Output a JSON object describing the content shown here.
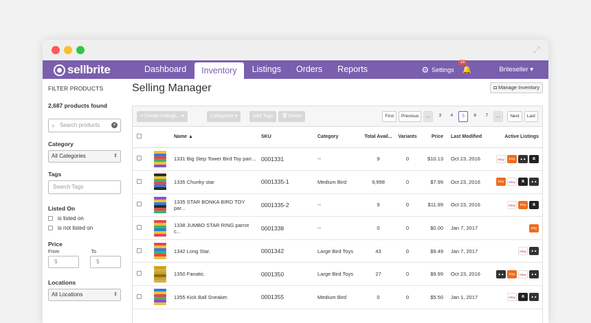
{
  "nav": {
    "logo": "sellbrite",
    "links": [
      "Dashboard",
      "Inventory",
      "Listings",
      "Orders",
      "Reports"
    ],
    "active": "Inventory",
    "settings": "Settings",
    "notifications": "15",
    "user": "Briteseller"
  },
  "sidebar": {
    "title": "FILTER PRODUCTS",
    "count": "2,687 products found",
    "search_placeholder": "Search products",
    "category_label": "Category",
    "category_value": "All Categories",
    "tags_label": "Tags",
    "tags_placeholder": "Search Tags",
    "listed_label": "Listed On",
    "listed_options": [
      "is listed on",
      "is not listed on"
    ],
    "price_label": "Price",
    "price_from": "From",
    "price_to": "To",
    "currency": "$",
    "locations_label": "Locations",
    "locations_value": "All Locations"
  },
  "main": {
    "title": "Selling Manager",
    "manage_button": "Manage Inventory",
    "toolbar": {
      "create": "Create Listings...",
      "categorize": "Categorize",
      "add_tags": "Add Tags",
      "delete": "Delete"
    },
    "pager": [
      "First",
      "Previous",
      "...",
      "3",
      "4",
      "5",
      "6",
      "7",
      "...",
      "Next",
      "Last"
    ],
    "pager_active": "5",
    "columns": [
      "Name ▲",
      "SKU",
      "Category",
      "Total Avail...",
      "Variants",
      "Price",
      "Last Modified",
      "Active Listings"
    ],
    "rows": [
      {
        "name": "1331 Big Step Tower Bird Toy parr...",
        "sku": "0001331",
        "category": "--",
        "qty": "9",
        "variants": "0",
        "price": "$10.13",
        "modified": "Oct 23, 2016",
        "listings": [
          "ebay",
          "etsy",
          "other",
          "amazon"
        ]
      },
      {
        "name": "1335 Chunky star",
        "sku": "0001335-1",
        "category": "Medium Bird",
        "qty": "9,998",
        "variants": "0",
        "price": "$7.99",
        "modified": "Oct 23, 2016",
        "listings": [
          "etsy",
          "ebay",
          "amazon",
          "other"
        ]
      },
      {
        "name": "1335 STAR BONKA BIRD TOY par...",
        "sku": "0001335-2",
        "category": "--",
        "qty": "9",
        "variants": "0",
        "price": "$11.99",
        "modified": "Oct 23, 2016",
        "listings": [
          "ebay",
          "etsy",
          "amazon"
        ]
      },
      {
        "name": "1338 JUMBO STAR RING parrot c...",
        "sku": "0001338",
        "category": "--",
        "qty": "0",
        "variants": "0",
        "price": "$0.00",
        "modified": "Jan 7, 2017",
        "listings": [
          "etsy"
        ]
      },
      {
        "name": "1342 Long Star.",
        "sku": "0001342",
        "category": "Large Bird Toys",
        "qty": "43",
        "variants": "0",
        "price": "$9.49",
        "modified": "Jan 7, 2017",
        "listings": [
          "ebay",
          "other"
        ]
      },
      {
        "name": "1350 Fanatic.",
        "sku": "0001350",
        "category": "Large Bird Toys",
        "qty": "27",
        "variants": "0",
        "price": "$9.99",
        "modified": "Oct 23, 2016",
        "listings": [
          "other",
          "etsy",
          "ebay",
          "other"
        ]
      },
      {
        "name": "1355 Kick Ball Sneaker.",
        "sku": "0001355",
        "category": "Medium Bird",
        "qty": "0",
        "variants": "0",
        "price": "$5.50",
        "modified": "Jan 1, 2017",
        "listings": [
          "ebay",
          "amazon",
          "other"
        ]
      }
    ]
  },
  "icon_labels": {
    "ebay": "ebay",
    "etsy": "Etsy",
    "amazon": "a",
    "other": "▲▲"
  },
  "colors": {
    "brand": "#7a5fae",
    "etsy": "#eb6d20",
    "amazon": "#222222"
  }
}
